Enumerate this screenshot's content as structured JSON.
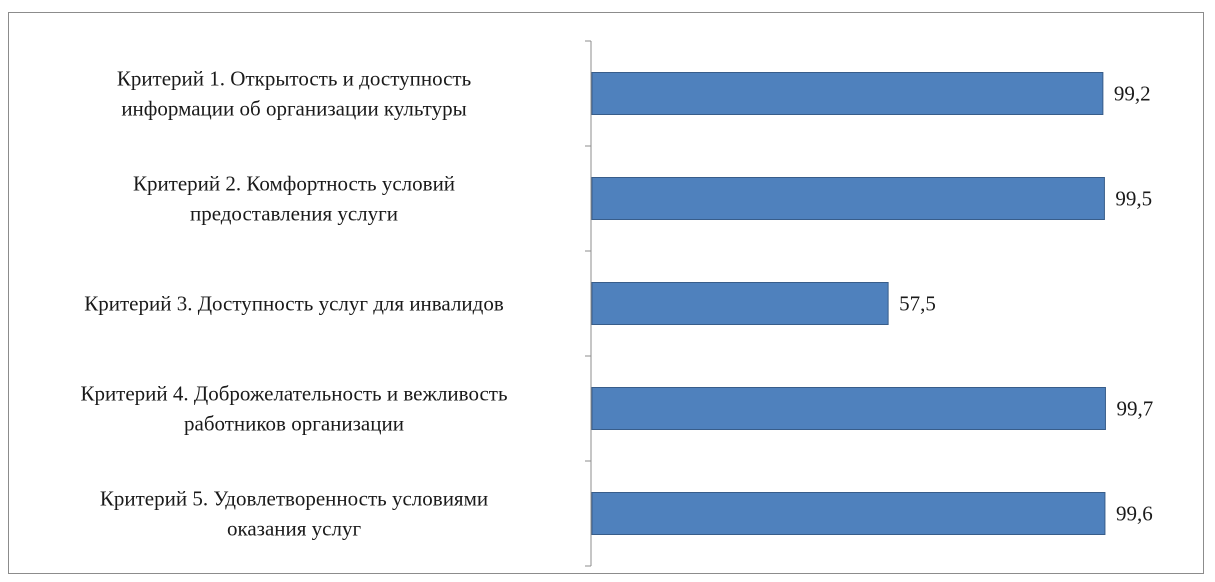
{
  "chart_data": {
    "type": "bar",
    "orientation": "horizontal",
    "categories": [
      [
        "Критерий 1. Открытость и доступность",
        "информации об организации культуры"
      ],
      [
        "Критерий 2. Комфортность условий",
        "предоставления услуги"
      ],
      [
        "Критерий 3. Доступность услуг для инвалидов"
      ],
      [
        "Критерий 4. Доброжелательность и вежливость",
        "работников организации"
      ],
      [
        "Критерий 5. Удовлетворенность условиями",
        "оказания услуг"
      ]
    ],
    "values": [
      99.2,
      99.5,
      57.5,
      99.7,
      99.6
    ],
    "value_labels": [
      "99,2",
      "99,5",
      "57,5",
      "99,7",
      "99,6"
    ],
    "xlim": [
      0,
      100
    ],
    "grid": false,
    "legend": "none",
    "bar_color": "#4f81bd",
    "bar_edge_color": "#385d8a",
    "axis_color": "#8c8c8c"
  }
}
